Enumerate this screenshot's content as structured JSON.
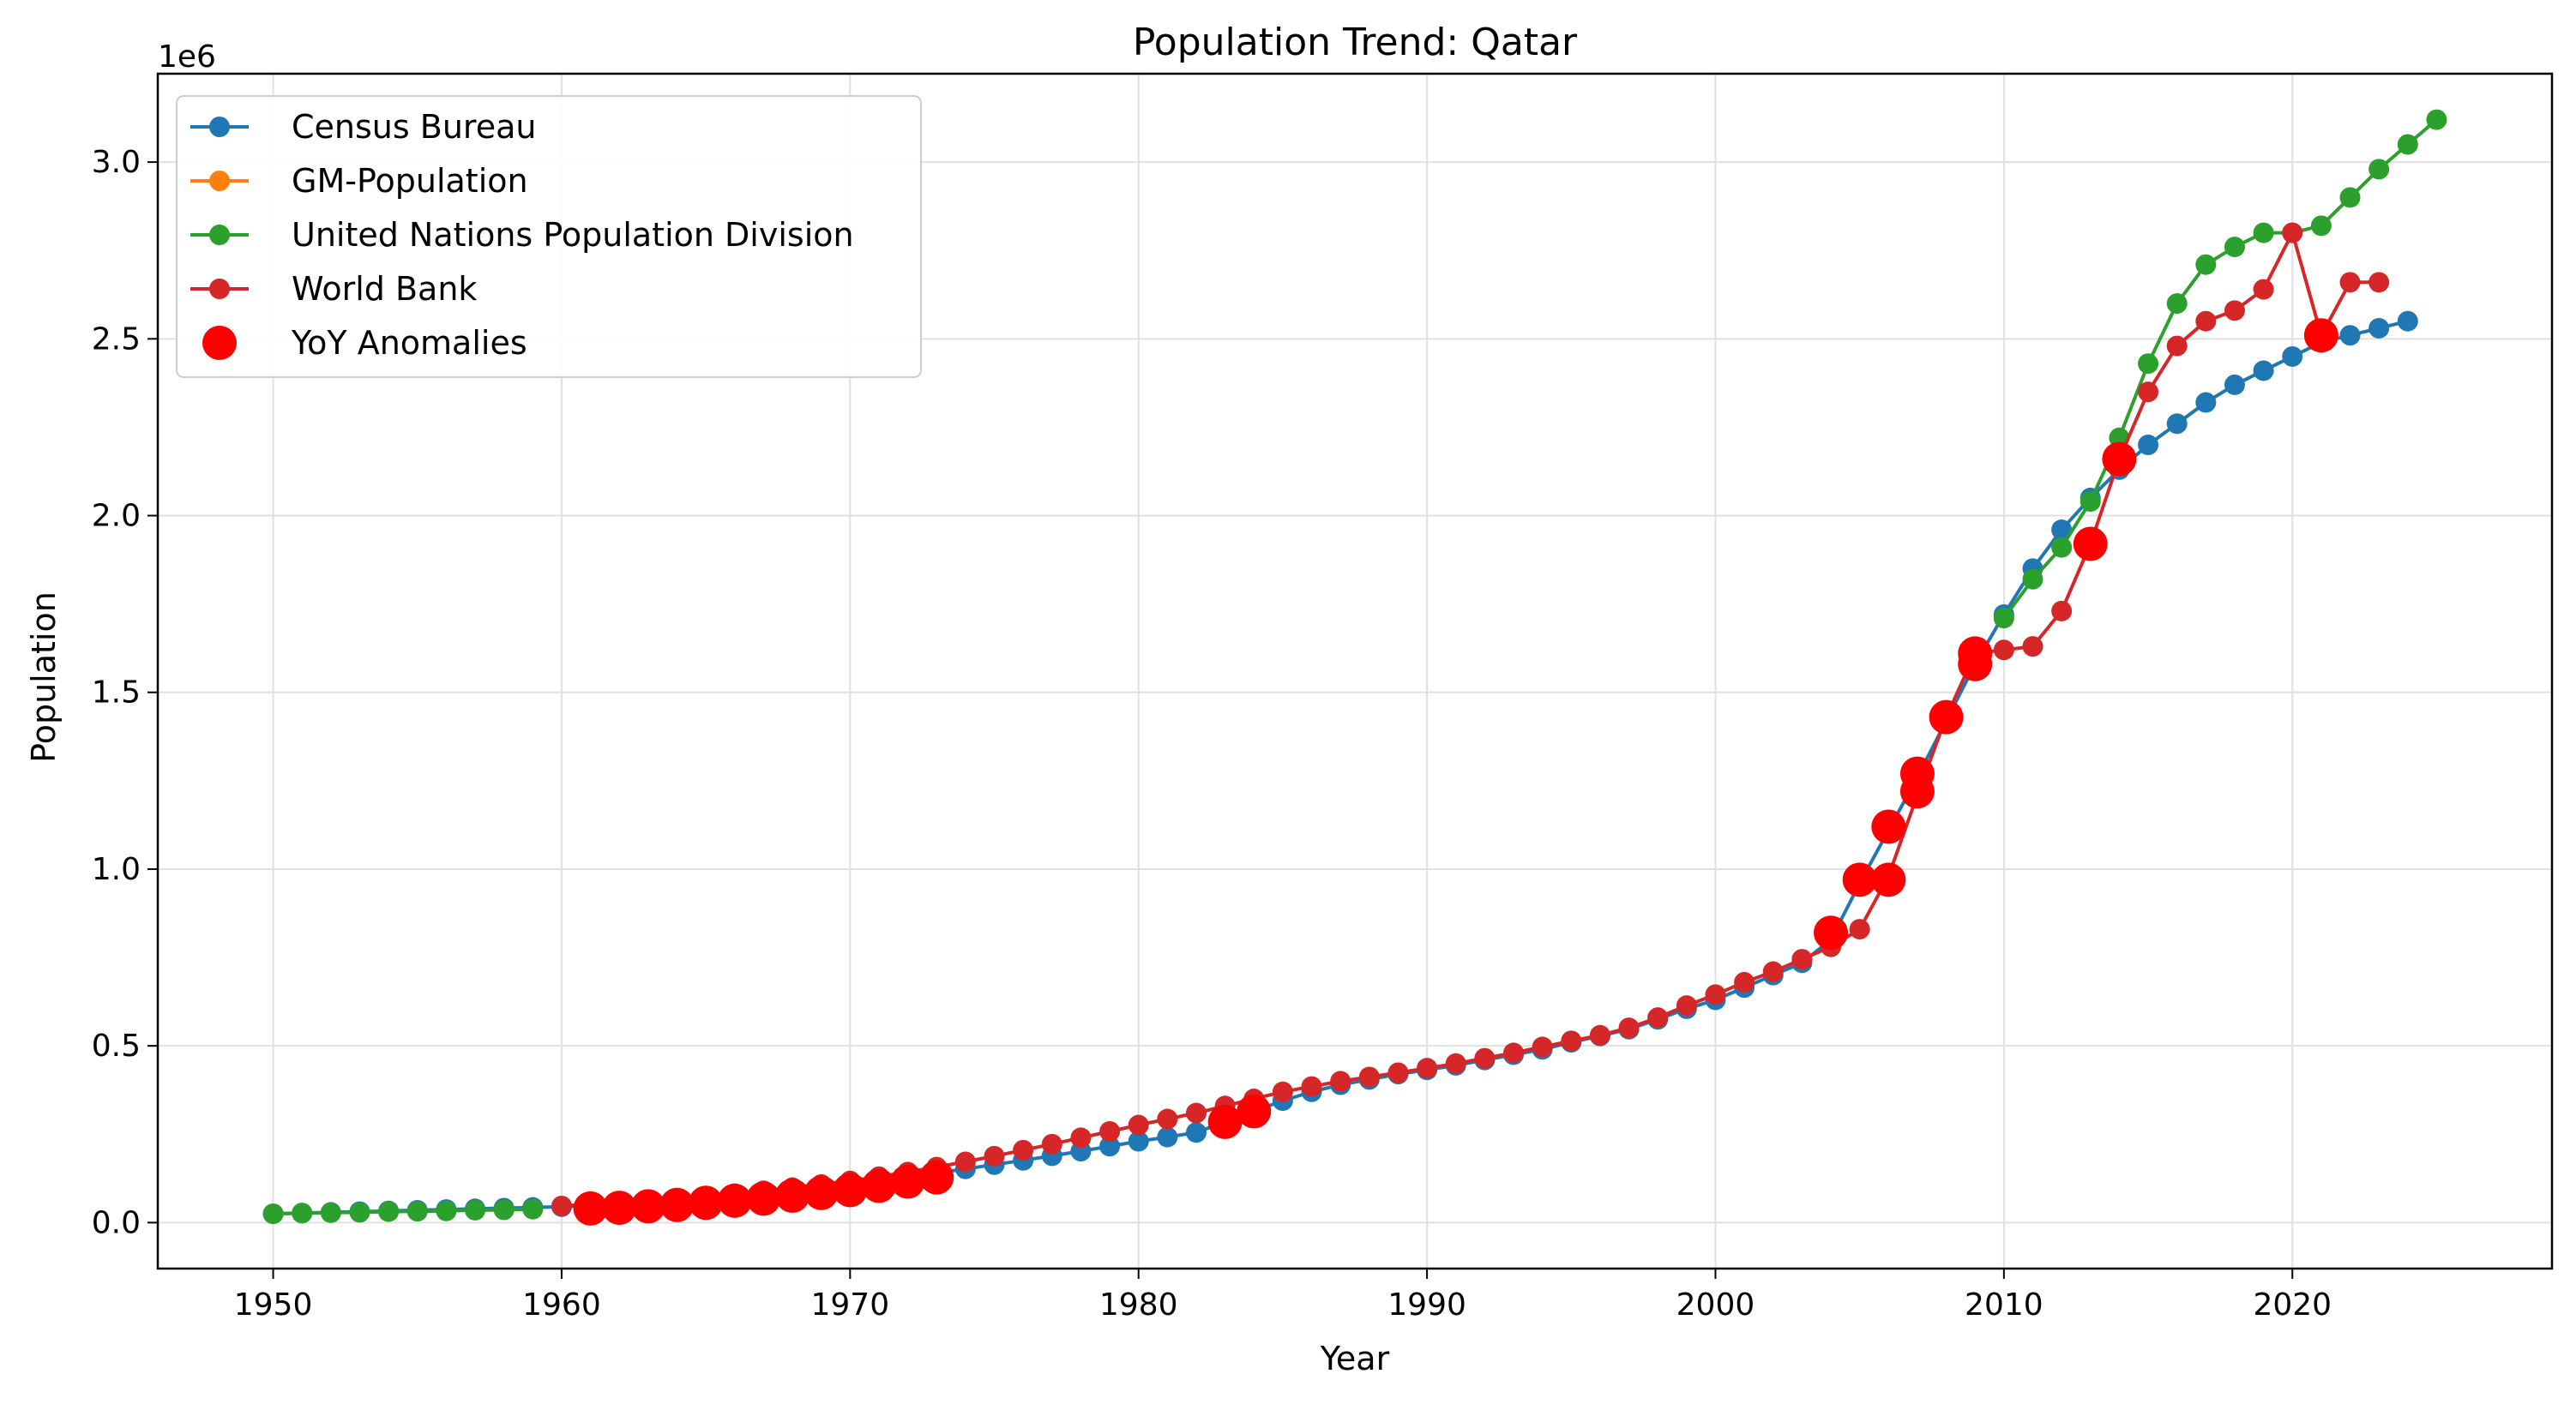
{
  "chart_data": {
    "type": "line",
    "title": "Population Trend: Qatar",
    "xlabel": "Year",
    "ylabel": "Population",
    "y_offset_label": "1e6",
    "xlim": [
      1946,
      2029
    ],
    "ylim": [
      -0.13,
      3.25
    ],
    "y_unit_multiplier": 1000000,
    "xticks": [
      1950,
      1960,
      1970,
      1980,
      1990,
      2000,
      2010,
      2020
    ],
    "xtick_labels": [
      "1950",
      "1960",
      "1970",
      "1980",
      "1990",
      "2000",
      "2010",
      "2020"
    ],
    "yticks": [
      0.0,
      0.5,
      1.0,
      1.5,
      2.0,
      2.5,
      3.0
    ],
    "ytick_labels": [
      "0.0",
      "0.5",
      "1.0",
      "1.5",
      "2.0",
      "2.5",
      "3.0"
    ],
    "grid": true,
    "legend_position": "top-left",
    "series": [
      {
        "name": "Census Bureau",
        "color": "#1f77b4",
        "x": [
          1950,
          1951,
          1952,
          1953,
          1954,
          1955,
          1956,
          1957,
          1958,
          1959,
          1960,
          1961,
          1962,
          1963,
          1964,
          1965,
          1966,
          1967,
          1968,
          1969,
          1970,
          1971,
          1972,
          1973,
          1974,
          1975,
          1976,
          1977,
          1978,
          1979,
          1980,
          1981,
          1982,
          1983,
          1984,
          1985,
          1986,
          1987,
          1988,
          1989,
          1990,
          1991,
          1992,
          1993,
          1994,
          1995,
          1996,
          1997,
          1998,
          1999,
          2000,
          2001,
          2002,
          2003,
          2004,
          2005,
          2006,
          2007,
          2008,
          2009,
          2010,
          2011,
          2012,
          2013,
          2014,
          2015,
          2016,
          2017,
          2018,
          2019,
          2020,
          2021,
          2022,
          2023,
          2024
        ],
        "y": [
          0.025,
          0.027,
          0.029,
          0.031,
          0.033,
          0.035,
          0.037,
          0.039,
          0.041,
          0.043,
          0.045,
          0.048,
          0.052,
          0.056,
          0.061,
          0.067,
          0.073,
          0.08,
          0.088,
          0.097,
          0.106,
          0.117,
          0.128,
          0.14,
          0.152,
          0.164,
          0.176,
          0.189,
          0.202,
          0.216,
          0.23,
          0.242,
          0.255,
          0.285,
          0.315,
          0.345,
          0.37,
          0.39,
          0.405,
          0.42,
          0.432,
          0.445,
          0.46,
          0.475,
          0.49,
          0.51,
          0.528,
          0.547,
          0.575,
          0.605,
          0.63,
          0.665,
          0.7,
          0.735,
          0.8,
          0.96,
          1.11,
          1.26,
          1.42,
          1.58,
          1.72,
          1.85,
          1.96,
          2.05,
          2.13,
          2.2,
          2.26,
          2.32,
          2.37,
          2.41,
          2.45,
          2.49,
          2.51,
          2.53,
          2.55
        ]
      },
      {
        "name": "GM-Population",
        "color": "#ff7f0e",
        "x": [],
        "y": []
      },
      {
        "name": "United Nations Population Division",
        "color": "#2ca02c",
        "x": [
          1950,
          1951,
          1952,
          1953,
          1954,
          1955,
          1956,
          1957,
          1958,
          1959,
          2010,
          2011,
          2012,
          2013,
          2014,
          2015,
          2016,
          2017,
          2018,
          2019,
          2020,
          2021,
          2022,
          2023,
          2024,
          2025
        ],
        "y": [
          0.025,
          0.027,
          0.028,
          0.029,
          0.031,
          0.032,
          0.033,
          0.035,
          0.036,
          0.038,
          1.71,
          1.82,
          1.91,
          2.04,
          2.22,
          2.43,
          2.6,
          2.71,
          2.76,
          2.8,
          2.8,
          2.82,
          2.9,
          2.98,
          3.05,
          3.12
        ]
      },
      {
        "name": "World Bank",
        "color": "#d62728",
        "x": [
          1960,
          1961,
          1962,
          1963,
          1964,
          1965,
          1966,
          1967,
          1968,
          1969,
          1970,
          1971,
          1972,
          1973,
          1974,
          1975,
          1976,
          1977,
          1978,
          1979,
          1980,
          1981,
          1982,
          1983,
          1984,
          1985,
          1986,
          1987,
          1988,
          1989,
          1990,
          1991,
          1992,
          1993,
          1994,
          1995,
          1996,
          1997,
          1998,
          1999,
          2000,
          2001,
          2002,
          2003,
          2004,
          2005,
          2006,
          2007,
          2008,
          2009,
          2010,
          2011,
          2012,
          2013,
          2014,
          2015,
          2016,
          2017,
          2018,
          2019,
          2020,
          2021,
          2022,
          2023
        ],
        "y": [
          0.047,
          0.052,
          0.057,
          0.062,
          0.068,
          0.075,
          0.082,
          0.09,
          0.099,
          0.108,
          0.118,
          0.13,
          0.143,
          0.157,
          0.172,
          0.188,
          0.205,
          0.222,
          0.24,
          0.258,
          0.276,
          0.293,
          0.31,
          0.33,
          0.35,
          0.37,
          0.385,
          0.4,
          0.412,
          0.424,
          0.437,
          0.45,
          0.465,
          0.48,
          0.497,
          0.514,
          0.53,
          0.551,
          0.58,
          0.614,
          0.645,
          0.68,
          0.71,
          0.745,
          0.78,
          0.83,
          0.98,
          1.21,
          1.43,
          1.61,
          1.62,
          1.63,
          1.73,
          1.92,
          2.16,
          2.35,
          2.48,
          2.55,
          2.58,
          2.64,
          2.8,
          2.51,
          2.66,
          2.66
        ]
      }
    ],
    "anomalies": {
      "name": "YoY Anomalies",
      "color": "#ff0000",
      "x": [
        1961,
        1962,
        1963,
        1964,
        1965,
        1966,
        1967,
        1968,
        1969,
        1970,
        1971,
        1972,
        1973,
        1983,
        1984,
        2004,
        2005,
        2006,
        2006,
        2007,
        2007,
        2008,
        2009,
        2009,
        2013,
        2014,
        2021
      ],
      "y": [
        0.04,
        0.042,
        0.046,
        0.05,
        0.056,
        0.062,
        0.068,
        0.076,
        0.084,
        0.092,
        0.104,
        0.116,
        0.128,
        0.285,
        0.315,
        0.82,
        0.97,
        0.97,
        1.12,
        1.22,
        1.27,
        1.43,
        1.58,
        1.61,
        1.92,
        2.16,
        2.51
      ]
    }
  }
}
